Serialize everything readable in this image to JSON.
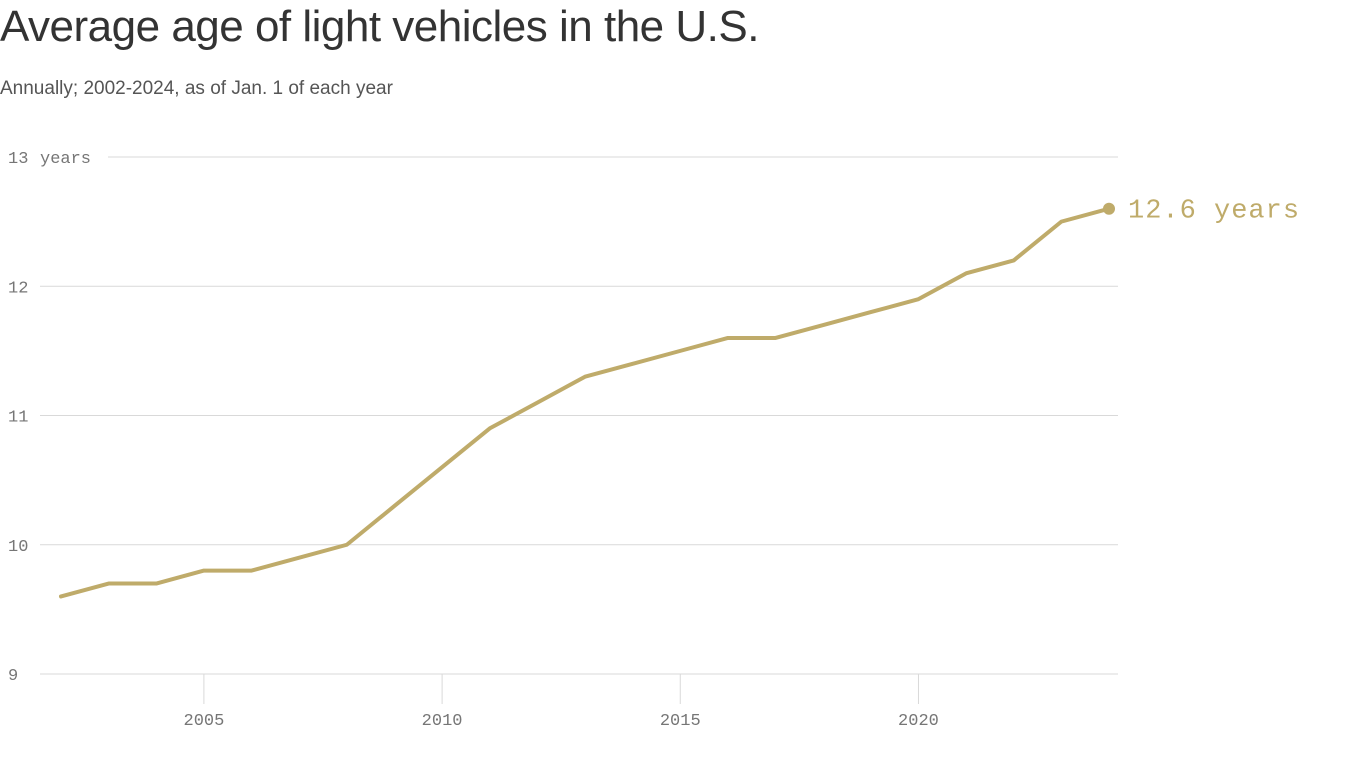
{
  "chart_data": {
    "type": "line",
    "title": "Average age of light vehicles in the U.S.",
    "subtitle": "Annually; 2002-2024, as of Jan. 1 of each year",
    "y_unit_label": "years",
    "x": [
      2002,
      2003,
      2004,
      2005,
      2006,
      2007,
      2008,
      2009,
      2010,
      2011,
      2012,
      2013,
      2014,
      2015,
      2016,
      2017,
      2018,
      2019,
      2020,
      2021,
      2022,
      2023,
      2024
    ],
    "series": [
      {
        "values": [
          9.6,
          9.7,
          9.7,
          9.8,
          9.8,
          9.9,
          10.0,
          10.3,
          10.6,
          10.9,
          11.1,
          11.3,
          11.4,
          11.5,
          11.6,
          11.6,
          11.7,
          11.8,
          11.9,
          12.1,
          12.2,
          12.5,
          12.6
        ],
        "color": "#bfab6a"
      }
    ],
    "end_label": "12.6 years",
    "xlim": [
      2002,
      2024
    ],
    "ylim": [
      9,
      13
    ],
    "y_ticks": [
      "9",
      "10",
      "11",
      "12",
      "13"
    ],
    "x_ticks": [
      "2005",
      "2010",
      "2015",
      "2020"
    ],
    "grid": true,
    "gridline_color": "#d9d9d9",
    "axis_text_color": "#767676"
  }
}
